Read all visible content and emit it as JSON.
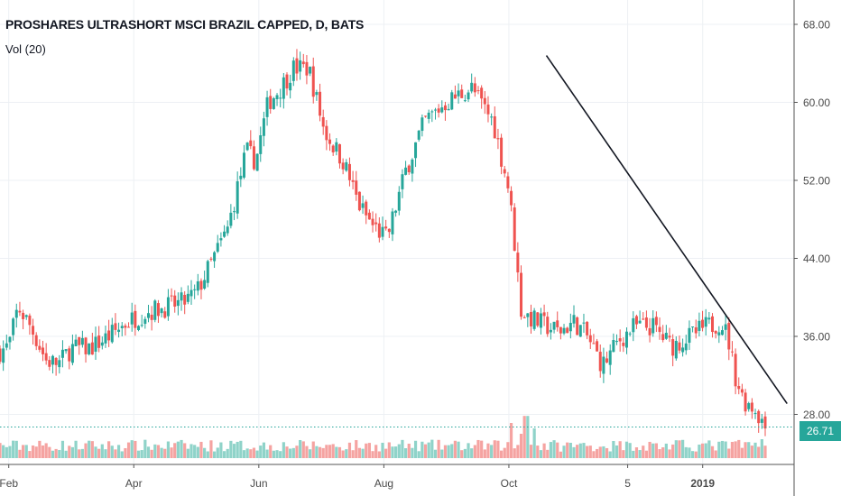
{
  "header": {
    "title": "PROSHARES ULTRASHORT MSCI BRAZIL CAPPED, D, BATS",
    "volume_label": "Vol (20)"
  },
  "last_price": "26.71",
  "colors": {
    "up": "#26a69a",
    "down": "#ef5350",
    "up_volume": "#8fd3c9",
    "down_volume": "#f5a3a1",
    "grid": "#edf0f4",
    "price_line": "#26a69a"
  },
  "chart_data": {
    "type": "candlestick",
    "title": "PROSHARES ULTRASHORT MSCI BRAZIL CAPPED, D, BATS",
    "indicator": "Vol (20)",
    "y_ticks": [
      "68.00",
      "60.00",
      "52.00",
      "44.00",
      "36.00",
      "28.00"
    ],
    "ylim": [
      24,
      70
    ],
    "x_ticks": [
      "Feb",
      "Apr",
      "Jun",
      "Aug",
      "Oct",
      "5",
      "2019"
    ],
    "x_tick_months": [
      1,
      3,
      5,
      7,
      9,
      10.9,
      12.1
    ],
    "xlim": [
      0.86,
      13.1
    ],
    "last_price": 26.71,
    "price_path": [
      [
        0.86,
        34.5
      ],
      [
        1.0,
        35.0
      ],
      [
        1.15,
        39.0
      ],
      [
        1.35,
        37.0
      ],
      [
        1.6,
        33.5
      ],
      [
        1.8,
        33.2
      ],
      [
        2.0,
        34.8
      ],
      [
        2.3,
        34.8
      ],
      [
        2.6,
        36.0
      ],
      [
        2.9,
        37.5
      ],
      [
        3.2,
        38.5
      ],
      [
        3.5,
        39.0
      ],
      [
        3.8,
        39.5
      ],
      [
        4.0,
        40.5
      ],
      [
        4.2,
        43.0
      ],
      [
        4.5,
        47.0
      ],
      [
        4.8,
        55.0
      ],
      [
        4.95,
        54.0
      ],
      [
        5.15,
        60.0
      ],
      [
        5.35,
        61.5
      ],
      [
        5.55,
        63.5
      ],
      [
        5.8,
        63.5
      ],
      [
        6.05,
        57.0
      ],
      [
        6.35,
        54.0
      ],
      [
        6.6,
        49.5
      ],
      [
        6.8,
        47.5
      ],
      [
        7.05,
        46.0
      ],
      [
        7.35,
        53.0
      ],
      [
        7.65,
        58.0
      ],
      [
        8.0,
        60.0
      ],
      [
        8.4,
        61.5
      ],
      [
        8.75,
        58.0
      ],
      [
        9.0,
        51.0
      ],
      [
        9.1,
        45.0
      ],
      [
        9.2,
        38.5
      ],
      [
        9.45,
        37.5
      ],
      [
        9.8,
        36.5
      ],
      [
        10.05,
        37.5
      ],
      [
        10.25,
        36.0
      ],
      [
        10.5,
        33.0
      ],
      [
        10.75,
        35.5
      ],
      [
        11.0,
        37.0
      ],
      [
        11.3,
        37.0
      ],
      [
        11.6,
        35.0
      ],
      [
        11.9,
        36.0
      ],
      [
        12.15,
        37.0
      ],
      [
        12.4,
        37.5
      ],
      [
        12.5,
        36.0
      ],
      [
        12.62,
        32.0
      ],
      [
        12.75,
        29.5
      ],
      [
        12.95,
        28.5
      ],
      [
        13.1,
        26.7
      ]
    ],
    "trend_line": {
      "start": [
        9.6,
        64.8
      ],
      "end": [
        13.45,
        29.1
      ]
    },
    "volume_spikes": [
      {
        "month": 9.05,
        "relative": 0.65
      },
      {
        "month": 9.18,
        "relative": 0.45
      },
      {
        "month": 9.28,
        "relative": 0.78
      },
      {
        "month": 9.4,
        "relative": 0.55
      },
      {
        "month": 10.95,
        "relative": 0.28
      },
      {
        "month": 11.15,
        "relative": 0.2
      },
      {
        "month": 12.6,
        "relative": 0.3
      },
      {
        "month": 13.05,
        "relative": 0.35
      }
    ]
  }
}
